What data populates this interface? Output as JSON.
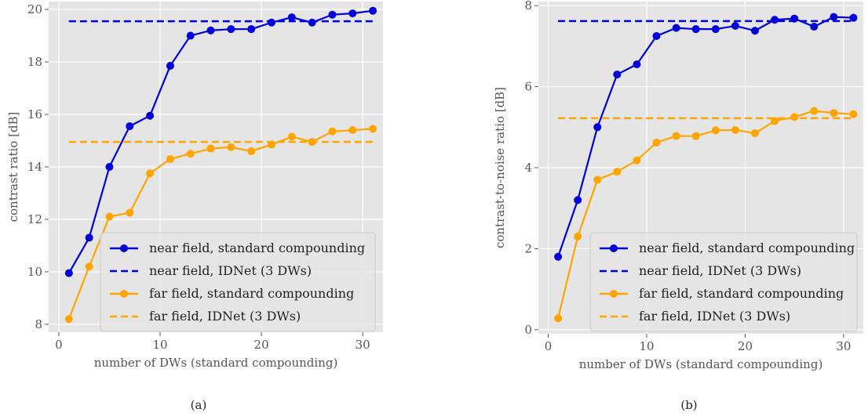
{
  "chart_data": [
    {
      "type": "line",
      "caption": "(a)",
      "xlabel": "number of DWs (standard compounding)",
      "ylabel": "contrast ratio [dB]",
      "xlim": [
        -1,
        32
      ],
      "ylim": [
        7.7,
        20.3
      ],
      "xticks": [
        0,
        10,
        20,
        30
      ],
      "yticks": [
        8,
        10,
        12,
        14,
        16,
        18,
        20
      ],
      "grid": true,
      "legend_position": "lower-right",
      "series": [
        {
          "name": "near field, standard compounding",
          "style": "solid-marker",
          "color": "#0000dd",
          "x": [
            1,
            3,
            5,
            7,
            9,
            11,
            13,
            15,
            17,
            19,
            21,
            23,
            25,
            27,
            29,
            31
          ],
          "y": [
            9.95,
            11.3,
            14.0,
            15.55,
            15.95,
            17.85,
            19.0,
            19.2,
            19.25,
            19.25,
            19.5,
            19.7,
            19.5,
            19.8,
            19.85,
            19.95
          ]
        },
        {
          "name": "near field, IDNet (3 DWs)",
          "style": "dashed",
          "color": "#0000dd",
          "x": [
            1,
            31
          ],
          "y": [
            19.55,
            19.55
          ]
        },
        {
          "name": "far field, standard compounding",
          "style": "solid-marker",
          "color": "#ffa500",
          "x": [
            1,
            3,
            5,
            7,
            9,
            11,
            13,
            15,
            17,
            19,
            21,
            23,
            25,
            27,
            29,
            31
          ],
          "y": [
            8.2,
            10.2,
            12.1,
            12.25,
            13.75,
            14.3,
            14.5,
            14.7,
            14.75,
            14.6,
            14.85,
            15.15,
            14.95,
            15.35,
            15.4,
            15.45
          ]
        },
        {
          "name": "far field, IDNet (3 DWs)",
          "style": "dashed",
          "color": "#ffa500",
          "x": [
            1,
            31
          ],
          "y": [
            14.95,
            14.95
          ]
        }
      ]
    },
    {
      "type": "line",
      "caption": "(b)",
      "xlabel": "number of DWs (standard compounding)",
      "ylabel": "contrast-to-noise ratio [dB]",
      "xlim": [
        -1,
        32
      ],
      "ylim": [
        -0.1,
        8.1
      ],
      "xticks": [
        0,
        10,
        20,
        30
      ],
      "yticks": [
        0,
        2,
        4,
        6,
        8
      ],
      "grid": true,
      "legend_position": "lower-right",
      "series": [
        {
          "name": "near field, standard compounding",
          "style": "solid-marker",
          "color": "#0000dd",
          "x": [
            1,
            3,
            5,
            7,
            9,
            11,
            13,
            15,
            17,
            19,
            21,
            23,
            25,
            27,
            29,
            31
          ],
          "y": [
            1.8,
            3.2,
            5.0,
            6.3,
            6.55,
            7.25,
            7.45,
            7.42,
            7.42,
            7.5,
            7.38,
            7.65,
            7.68,
            7.48,
            7.72,
            7.7
          ]
        },
        {
          "name": "near field, IDNet (3 DWs)",
          "style": "dashed",
          "color": "#0000dd",
          "x": [
            1,
            31
          ],
          "y": [
            7.62,
            7.62
          ]
        },
        {
          "name": "far field, standard compounding",
          "style": "solid-marker",
          "color": "#ffa500",
          "x": [
            1,
            3,
            5,
            7,
            9,
            11,
            13,
            15,
            17,
            19,
            21,
            23,
            25,
            27,
            29,
            31
          ],
          "y": [
            0.28,
            2.3,
            3.7,
            3.9,
            4.18,
            4.62,
            4.78,
            4.78,
            4.92,
            4.93,
            4.85,
            5.15,
            5.25,
            5.4,
            5.35,
            5.32
          ]
        },
        {
          "name": "far field, IDNet (3 DWs)",
          "style": "dashed",
          "color": "#ffa500",
          "x": [
            1,
            31
          ],
          "y": [
            5.22,
            5.22
          ]
        }
      ]
    }
  ]
}
